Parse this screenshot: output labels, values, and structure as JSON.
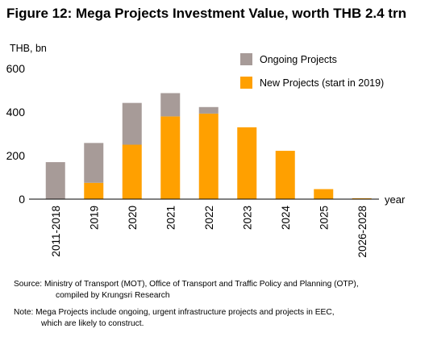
{
  "title": "Figure 12: Mega Projects Investment Value, worth THB 2.4 trn",
  "source": {
    "line1": "Source: Ministry of Transport (MOT), Office of Transport and Traffic Policy and Planning (OTP),",
    "line2": "compiled by Krungsri Research"
  },
  "note": {
    "line1": "Note: Mega Projects include ongoing, urgent infrastructure projects and projects in EEC,",
    "line2": "which are likely to construct."
  },
  "colors": {
    "ongoing": "#a79b98",
    "new": "#ffa000"
  },
  "chart_data": {
    "type": "bar",
    "stacked": true,
    "ylabel": "THB, bn",
    "xlabel": "year",
    "ylim": [
      0,
      600
    ],
    "yticks": [
      0,
      200,
      400,
      600
    ],
    "grid": false,
    "legend_position": "top-right",
    "categories": [
      "2011-2018",
      "2019",
      "2020",
      "2021",
      "2022",
      "2023",
      "2024",
      "2025",
      "2026-2028"
    ],
    "series": [
      {
        "name": "New Projects (start in 2019)",
        "values": [
          0,
          75,
          250,
          380,
          393,
          330,
          222,
          46,
          4
        ]
      },
      {
        "name": "Ongoing Projects",
        "values": [
          170,
          183,
          192,
          107,
          30,
          0,
          0,
          0,
          0
        ]
      }
    ]
  }
}
